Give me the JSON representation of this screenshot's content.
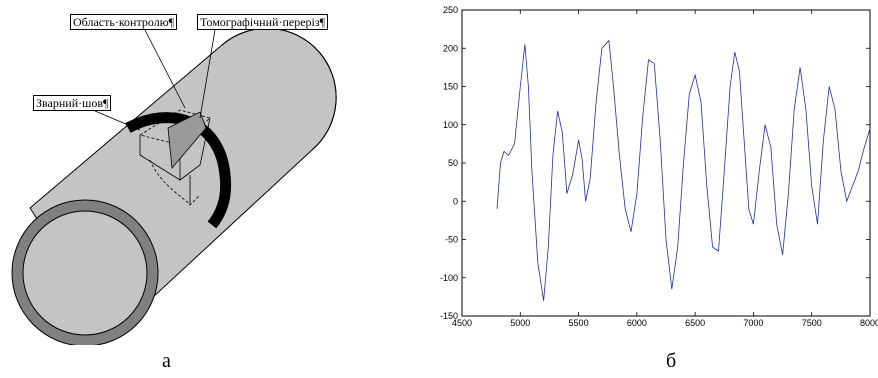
{
  "diagram": {
    "callouts": {
      "inspection_area": "Область·контролю¶",
      "tomo_section": "Томографічний·переріз¶",
      "weld_seam": "Зварний·шов¶"
    },
    "caption": "а"
  },
  "chart": {
    "caption": "б"
  },
  "chart_data": {
    "type": "line",
    "title": "",
    "xlabel": "",
    "ylabel": "",
    "xlim": [
      4500,
      8000
    ],
    "ylim": [
      -150,
      250
    ],
    "x_ticks": [
      4500,
      5000,
      5500,
      6000,
      6500,
      7000,
      7500,
      8000
    ],
    "y_ticks": [
      -150,
      -100,
      -50,
      0,
      50,
      100,
      150,
      200,
      250
    ],
    "series": [
      {
        "color": "#1f2f9f",
        "x": [
          4800,
          4830,
          4860,
          4900,
          4950,
          5000,
          5040,
          5070,
          5100,
          5150,
          5200,
          5240,
          5280,
          5320,
          5360,
          5400,
          5450,
          5500,
          5530,
          5560,
          5600,
          5650,
          5700,
          5760,
          5800,
          5850,
          5900,
          5950,
          6000,
          6050,
          6100,
          6150,
          6200,
          6250,
          6300,
          6350,
          6400,
          6450,
          6500,
          6550,
          6600,
          6650,
          6700,
          6750,
          6800,
          6840,
          6880,
          6920,
          6960,
          7000,
          7050,
          7100,
          7150,
          7200,
          7250,
          7300,
          7350,
          7400,
          7450,
          7500,
          7550,
          7600,
          7650,
          7700,
          7750,
          7800,
          7850,
          7900,
          7950,
          8000
        ],
        "y": [
          -10,
          50,
          65,
          60,
          75,
          150,
          205,
          150,
          40,
          -80,
          -130,
          -60,
          60,
          118,
          90,
          10,
          35,
          80,
          55,
          0,
          30,
          130,
          200,
          210,
          150,
          60,
          -10,
          -40,
          10,
          110,
          185,
          180,
          80,
          -50,
          -115,
          -60,
          50,
          140,
          165,
          130,
          20,
          -60,
          -65,
          40,
          150,
          195,
          170,
          80,
          -10,
          -30,
          40,
          100,
          70,
          -30,
          -70,
          10,
          120,
          175,
          120,
          20,
          -30,
          80,
          150,
          120,
          40,
          0,
          20,
          40,
          70,
          95
        ]
      }
    ]
  }
}
